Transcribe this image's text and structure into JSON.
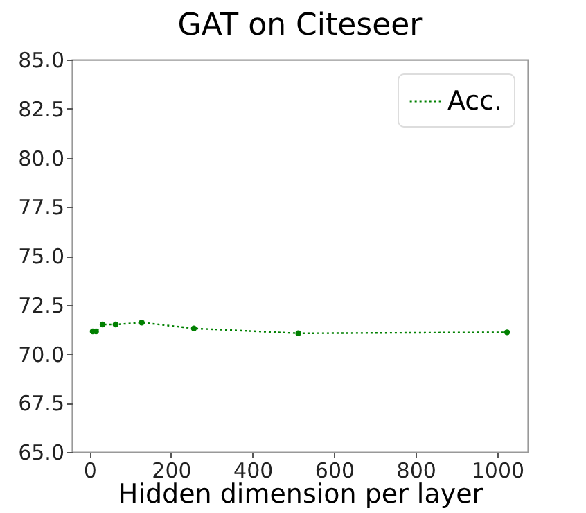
{
  "chart_data": {
    "type": "line",
    "title": "GAT on Citeseer",
    "xlabel": "Hidden dimension per layer",
    "x": [
      8,
      16,
      32,
      64,
      128,
      256,
      512,
      1024
    ],
    "series": [
      {
        "name": "Acc.",
        "color": "#008000",
        "values": [
          71.15,
          71.15,
          71.5,
          71.5,
          71.6,
          71.3,
          71.05,
          71.1
        ]
      }
    ],
    "xlim": [
      -42.8,
      1074.8
    ],
    "xticks": [
      0,
      200,
      400,
      600,
      800,
      1000
    ],
    "ylim": [
      65.0,
      85.0
    ],
    "yticks": [
      {
        "value": 65,
        "label": "65.0"
      },
      {
        "value": 67.5,
        "label": "67.5"
      },
      {
        "value": 70,
        "label": "70.0"
      },
      {
        "value": 72.5,
        "label": "72.5"
      },
      {
        "value": 75,
        "label": "75.0"
      },
      {
        "value": 77.5,
        "label": "77.5"
      },
      {
        "value": 80,
        "label": "80.0"
      },
      {
        "value": 82.5,
        "label": "82.5"
      },
      {
        "value": 85,
        "label": "85.0"
      }
    ],
    "grid": false,
    "legend": "top right",
    "marker": "circle",
    "line_style": "dotted"
  }
}
